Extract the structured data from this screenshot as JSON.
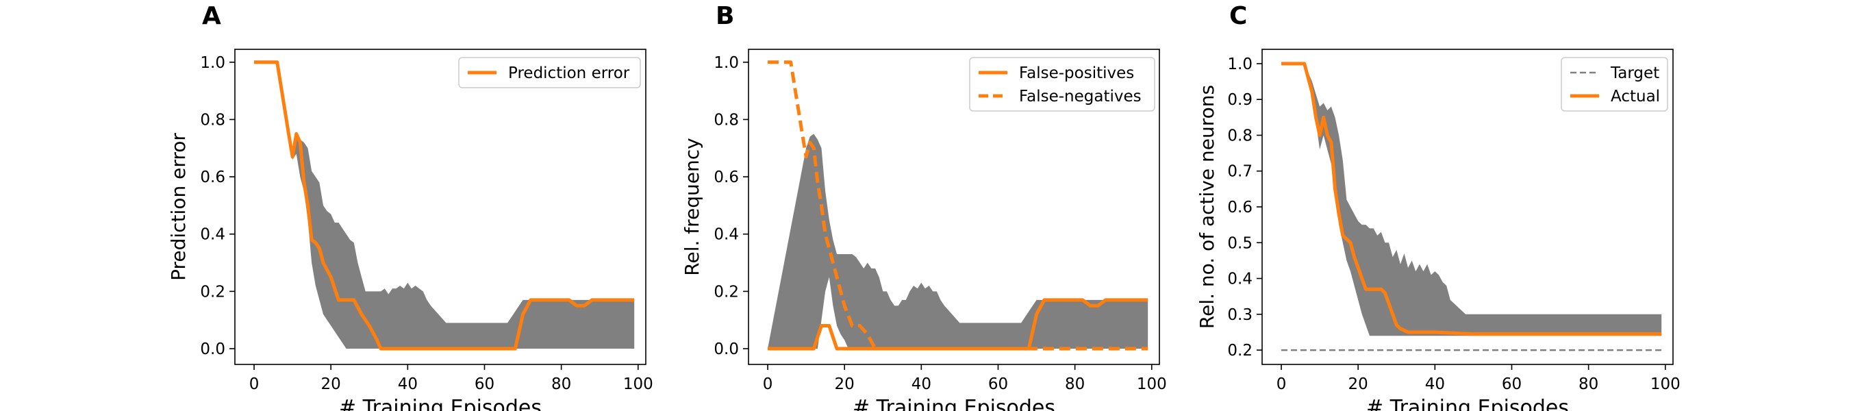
{
  "chart_data": [
    {
      "panel": "A",
      "type": "line",
      "xlabel": "# Training Episodes",
      "ylabel": "Prediction error",
      "xlim": [
        -5,
        102
      ],
      "ylim": [
        -0.055,
        1.045
      ],
      "xticks": [
        0,
        20,
        40,
        60,
        80,
        100
      ],
      "xtick_labels": [
        "0",
        "20",
        "40",
        "60",
        "80",
        "100"
      ],
      "yticks": [
        0.0,
        0.2,
        0.4,
        0.6,
        0.8,
        1.0
      ],
      "ytick_labels": [
        "0.0",
        "0.2",
        "0.4",
        "0.6",
        "0.8",
        "1.0"
      ],
      "legend_position": "top-right",
      "band": {
        "color": "#808080",
        "x": [
          0,
          6,
          10,
          11,
          12,
          13,
          14,
          15,
          16,
          17,
          18,
          19,
          20,
          21,
          22,
          23,
          24,
          25,
          26,
          27,
          28,
          29,
          30,
          31,
          32,
          33,
          34,
          35,
          36,
          37,
          38,
          39,
          40,
          41,
          42,
          43,
          44,
          45,
          46,
          48,
          50,
          60,
          66,
          68,
          70,
          75,
          80,
          85,
          90,
          95,
          99
        ],
        "upper": [
          1.0,
          1.0,
          0.7,
          0.74,
          0.73,
          0.72,
          0.7,
          0.62,
          0.6,
          0.58,
          0.5,
          0.48,
          0.47,
          0.44,
          0.44,
          0.42,
          0.4,
          0.38,
          0.37,
          0.3,
          0.25,
          0.2,
          0.2,
          0.2,
          0.2,
          0.2,
          0.21,
          0.19,
          0.21,
          0.21,
          0.22,
          0.21,
          0.23,
          0.21,
          0.22,
          0.21,
          0.2,
          0.17,
          0.15,
          0.12,
          0.09,
          0.09,
          0.09,
          0.13,
          0.17,
          0.17,
          0.17,
          0.17,
          0.17,
          0.17,
          0.17
        ],
        "lower": [
          1.0,
          1.0,
          0.66,
          0.68,
          0.6,
          0.55,
          0.45,
          0.3,
          0.22,
          0.17,
          0.12,
          0.1,
          0.08,
          0.06,
          0.04,
          0.02,
          0.0,
          0.0,
          0.0,
          0.0,
          0.0,
          0.0,
          0.0,
          0.0,
          0.0,
          0.0,
          0.0,
          0.0,
          0.0,
          0.0,
          0.0,
          0.0,
          0.0,
          0.0,
          0.0,
          0.0,
          0.0,
          0.0,
          0.0,
          0.0,
          0.0,
          0.0,
          0.0,
          0.0,
          0.0,
          0.0,
          0.0,
          0.0,
          0.0,
          0.0,
          0.0
        ]
      },
      "series": [
        {
          "name": "Prediction error",
          "color": "#ff7f0e",
          "style": "solid",
          "x": [
            0,
            6,
            9,
            10,
            11,
            12,
            13,
            14,
            15,
            16,
            17,
            18,
            20,
            22,
            24,
            26,
            28,
            30,
            32,
            33,
            40,
            50,
            60,
            66,
            68,
            70,
            72,
            80,
            82,
            84,
            86,
            88,
            90,
            95,
            99
          ],
          "y": [
            1.0,
            1.0,
            0.75,
            0.67,
            0.75,
            0.72,
            0.58,
            0.5,
            0.38,
            0.37,
            0.35,
            0.3,
            0.25,
            0.17,
            0.17,
            0.17,
            0.12,
            0.08,
            0.03,
            0.0,
            0.0,
            0.0,
            0.0,
            0.0,
            0.0,
            0.12,
            0.17,
            0.17,
            0.17,
            0.15,
            0.15,
            0.17,
            0.17,
            0.17,
            0.17
          ]
        }
      ]
    },
    {
      "panel": "B",
      "type": "line",
      "xlabel": "# Training Episodes",
      "ylabel": "Rel. frequency",
      "xlim": [
        -5,
        102
      ],
      "ylim": [
        -0.055,
        1.045
      ],
      "xticks": [
        0,
        20,
        40,
        60,
        80,
        100
      ],
      "xtick_labels": [
        "0",
        "20",
        "40",
        "60",
        "80",
        "100"
      ],
      "yticks": [
        0.0,
        0.2,
        0.4,
        0.6,
        0.8,
        1.0
      ],
      "ytick_labels": [
        "0.0",
        "0.2",
        "0.4",
        "0.6",
        "0.8",
        "1.0"
      ],
      "legend_position": "top-right",
      "band": {
        "color": "#808080",
        "x": [
          0,
          10,
          11,
          12,
          13,
          14,
          15,
          16,
          17,
          18,
          19,
          20,
          21,
          22,
          23,
          24,
          25,
          26,
          27,
          28,
          29,
          30,
          31,
          32,
          33,
          34,
          35,
          36,
          37,
          38,
          39,
          40,
          41,
          42,
          43,
          44,
          45,
          46,
          48,
          50,
          60,
          66,
          68,
          70,
          75,
          80,
          85,
          90,
          95,
          99
        ],
        "upper": [
          0.0,
          0.7,
          0.74,
          0.75,
          0.73,
          0.7,
          0.55,
          0.45,
          0.38,
          0.33,
          0.33,
          0.33,
          0.33,
          0.33,
          0.32,
          0.3,
          0.28,
          0.3,
          0.28,
          0.28,
          0.25,
          0.2,
          0.2,
          0.17,
          0.15,
          0.15,
          0.17,
          0.17,
          0.2,
          0.22,
          0.21,
          0.23,
          0.21,
          0.22,
          0.2,
          0.2,
          0.17,
          0.15,
          0.12,
          0.09,
          0.09,
          0.09,
          0.13,
          0.17,
          0.17,
          0.17,
          0.17,
          0.17,
          0.17,
          0.17
        ],
        "lower": [
          0.0,
          0.0,
          0.0,
          0.0,
          0.0,
          0.1,
          0.2,
          0.25,
          0.15,
          0.08,
          0.05,
          0.03,
          0.0,
          0.0,
          0.0,
          0.0,
          0.0,
          0.0,
          0.0,
          0.0,
          0.0,
          0.0,
          0.0,
          0.0,
          0.0,
          0.0,
          0.0,
          0.0,
          0.0,
          0.0,
          0.0,
          0.0,
          0.0,
          0.0,
          0.0,
          0.0,
          0.0,
          0.0,
          0.0,
          0.0,
          0.0,
          0.0,
          0.0,
          0.0,
          0.0,
          0.0,
          0.0,
          0.0,
          0.0,
          0.0
        ]
      },
      "series": [
        {
          "name": "False-positives",
          "color": "#ff7f0e",
          "style": "solid",
          "x": [
            0,
            11,
            12,
            13,
            14,
            15,
            16,
            17,
            18,
            20,
            40,
            60,
            66,
            68,
            70,
            72,
            80,
            82,
            84,
            86,
            88,
            90,
            95,
            99
          ],
          "y": [
            0.0,
            0.0,
            0.0,
            0.04,
            0.08,
            0.08,
            0.08,
            0.04,
            0.0,
            0.0,
            0.0,
            0.0,
            0.0,
            0.0,
            0.12,
            0.17,
            0.17,
            0.17,
            0.15,
            0.15,
            0.17,
            0.17,
            0.17,
            0.17
          ]
        },
        {
          "name": "False-negatives",
          "color": "#ff7f0e",
          "style": "dashed",
          "x": [
            0,
            6,
            9,
            10,
            11,
            12,
            13,
            14,
            15,
            16,
            17,
            18,
            20,
            22,
            24,
            26,
            28,
            30,
            40,
            60,
            80,
            99
          ],
          "y": [
            1.0,
            1.0,
            0.75,
            0.67,
            0.72,
            0.7,
            0.58,
            0.5,
            0.4,
            0.35,
            0.3,
            0.25,
            0.15,
            0.08,
            0.08,
            0.05,
            0.0,
            0.0,
            0.0,
            0.0,
            0.0,
            0.0
          ]
        }
      ]
    },
    {
      "panel": "C",
      "type": "line",
      "xlabel": "# Training Episodes",
      "ylabel": "Rel. no. of active neurons",
      "xlim": [
        -5,
        102
      ],
      "ylim": [
        0.16,
        1.04
      ],
      "xticks": [
        0,
        20,
        40,
        60,
        80,
        100
      ],
      "xtick_labels": [
        "0",
        "20",
        "40",
        "60",
        "80",
        "100"
      ],
      "yticks": [
        0.2,
        0.3,
        0.4,
        0.5,
        0.6,
        0.7,
        0.8,
        0.9,
        1.0
      ],
      "ytick_labels": [
        "0.2",
        "0.3",
        "0.4",
        "0.5",
        "0.6",
        "0.7",
        "0.8",
        "0.9",
        "1.0"
      ],
      "legend_position": "top-right",
      "band": {
        "color": "#808080",
        "x": [
          0,
          6,
          8,
          10,
          11,
          12,
          13,
          14,
          15,
          16,
          17,
          18,
          19,
          20,
          21,
          22,
          23,
          24,
          25,
          26,
          27,
          28,
          29,
          30,
          31,
          32,
          33,
          34,
          35,
          36,
          37,
          38,
          39,
          40,
          41,
          42,
          43,
          44,
          45,
          46,
          47,
          48,
          49,
          50,
          60,
          70,
          80,
          90,
          99
        ],
        "upper": [
          1.0,
          1.0,
          0.95,
          0.88,
          0.89,
          0.87,
          0.88,
          0.85,
          0.8,
          0.73,
          0.62,
          0.6,
          0.58,
          0.56,
          0.55,
          0.55,
          0.54,
          0.54,
          0.52,
          0.53,
          0.5,
          0.5,
          0.46,
          0.48,
          0.44,
          0.47,
          0.43,
          0.45,
          0.42,
          0.44,
          0.42,
          0.44,
          0.41,
          0.42,
          0.41,
          0.39,
          0.38,
          0.34,
          0.33,
          0.32,
          0.31,
          0.3,
          0.3,
          0.3,
          0.3,
          0.3,
          0.3,
          0.3,
          0.3
        ],
        "lower": [
          1.0,
          1.0,
          0.92,
          0.76,
          0.8,
          0.76,
          0.72,
          0.68,
          0.55,
          0.5,
          0.45,
          0.42,
          0.38,
          0.34,
          0.3,
          0.27,
          0.24,
          0.24,
          0.24,
          0.24,
          0.24,
          0.24,
          0.24,
          0.24,
          0.24,
          0.24,
          0.24,
          0.24,
          0.24,
          0.24,
          0.24,
          0.24,
          0.24,
          0.24,
          0.24,
          0.24,
          0.24,
          0.24,
          0.24,
          0.24,
          0.24,
          0.24,
          0.24,
          0.24,
          0.24,
          0.24,
          0.24,
          0.24,
          0.24
        ]
      },
      "series": [
        {
          "name": "Target",
          "color": "#808080",
          "style": "dashed",
          "x": [
            0,
            99
          ],
          "y": [
            0.2,
            0.2
          ]
        },
        {
          "name": "Actual",
          "color": "#ff7f0e",
          "style": "solid",
          "x": [
            0,
            6,
            8,
            9,
            10,
            11,
            12,
            13,
            14,
            15,
            16,
            17,
            18,
            19,
            20,
            21,
            22,
            23,
            24,
            25,
            26,
            27,
            28,
            29,
            30,
            31,
            32,
            33,
            34,
            35,
            40,
            50,
            60,
            70,
            80,
            90,
            99
          ],
          "y": [
            1.0,
            1.0,
            0.92,
            0.85,
            0.8,
            0.85,
            0.8,
            0.78,
            0.65,
            0.58,
            0.52,
            0.51,
            0.5,
            0.46,
            0.43,
            0.4,
            0.37,
            0.37,
            0.37,
            0.37,
            0.37,
            0.36,
            0.33,
            0.3,
            0.27,
            0.26,
            0.255,
            0.25,
            0.25,
            0.25,
            0.25,
            0.245,
            0.245,
            0.245,
            0.245,
            0.245,
            0.245
          ]
        }
      ]
    }
  ]
}
